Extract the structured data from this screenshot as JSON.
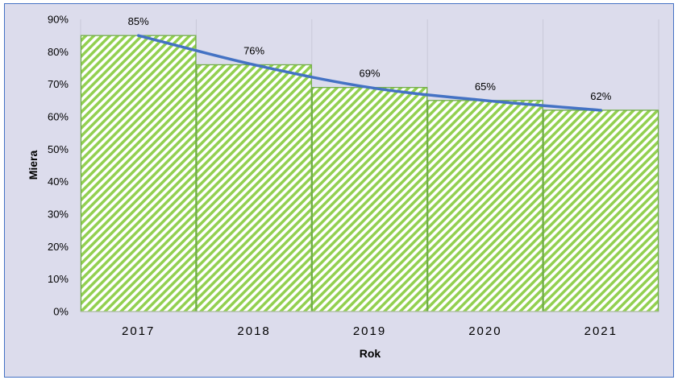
{
  "chart_data": {
    "type": "bar",
    "categories": [
      "2017",
      "2018",
      "2019",
      "2020",
      "2021"
    ],
    "values": [
      85,
      76,
      69,
      65,
      62
    ],
    "data_labels": [
      "85%",
      "76%",
      "69%",
      "65%",
      "62%"
    ],
    "value_unit": "%",
    "xlabel": "Rok",
    "ylabel": "Miera",
    "ylim": [
      0,
      90
    ],
    "yticks": [
      "0%",
      "10%",
      "20%",
      "30%",
      "40%",
      "50%",
      "60%",
      "70%",
      "80%",
      "90%"
    ],
    "trendline": true,
    "grid": "vertical",
    "bar_pattern": "diagonal-stripes",
    "colors": {
      "bar_fill": "#92d050",
      "bar_border": "#70ad47",
      "trendline": "#4472c4",
      "background": "#dcdcec",
      "frame": "#4472c4"
    }
  }
}
